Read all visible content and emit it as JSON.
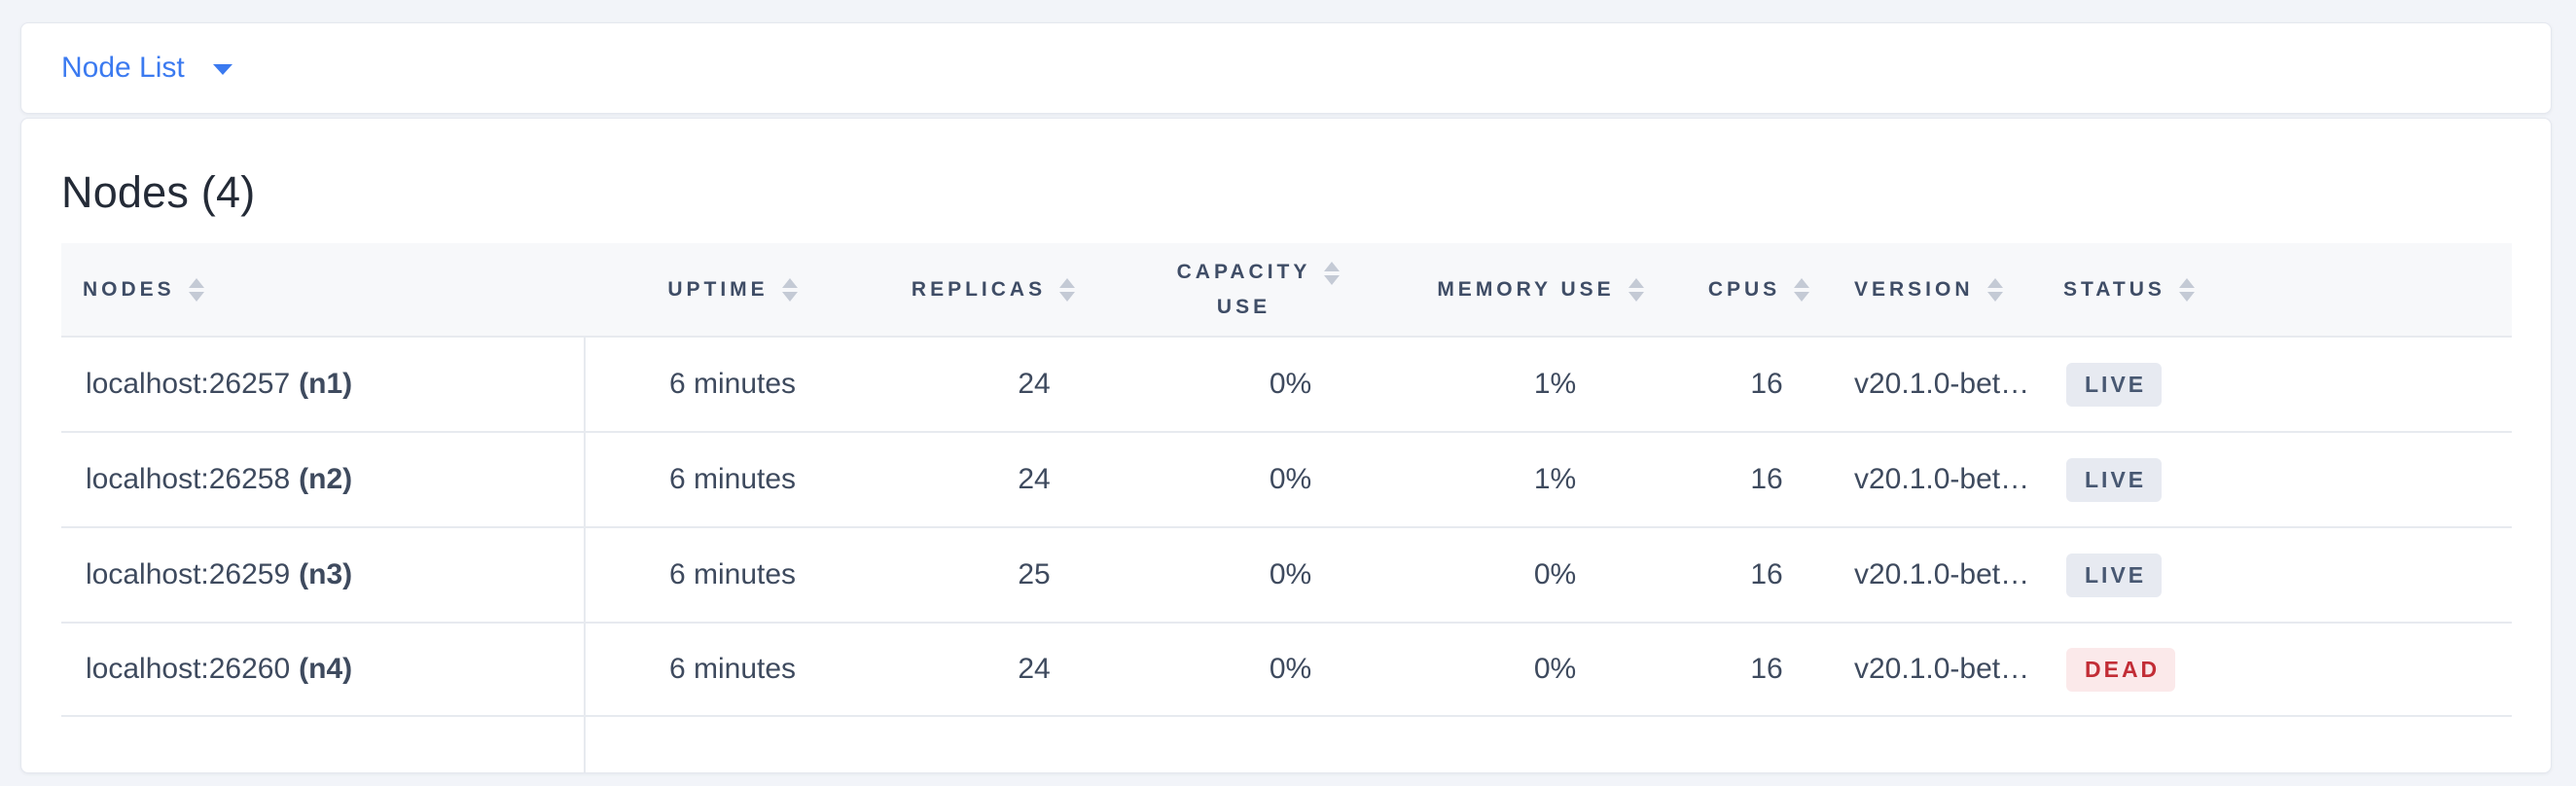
{
  "header_bar": {
    "dropdown_label": "Node List"
  },
  "panel": {
    "title": "Nodes (4)",
    "columns": [
      {
        "label": "NODES"
      },
      {
        "label": "UPTIME"
      },
      {
        "label": "REPLICAS"
      },
      {
        "label": "CAPACITY USE",
        "line1": "CAPACITY",
        "line2": "USE"
      },
      {
        "label": "MEMORY USE"
      },
      {
        "label": "CPUS"
      },
      {
        "label": "VERSION"
      },
      {
        "label": "STATUS"
      }
    ],
    "rows": [
      {
        "address": "localhost:26257",
        "node_id": "(n1)",
        "uptime": "6 minutes",
        "replicas": "24",
        "capacity_use": "0%",
        "memory_use": "1%",
        "cpus": "16",
        "version": "v20.1.0-bet…",
        "status": {
          "label": "LIVE",
          "type": "live"
        }
      },
      {
        "address": "localhost:26258",
        "node_id": "(n2)",
        "uptime": "6 minutes",
        "replicas": "24",
        "capacity_use": "0%",
        "memory_use": "1%",
        "cpus": "16",
        "version": "v20.1.0-bet…",
        "status": {
          "label": "LIVE",
          "type": "live"
        }
      },
      {
        "address": "localhost:26259",
        "node_id": "(n3)",
        "uptime": "6 minutes",
        "replicas": "25",
        "capacity_use": "0%",
        "memory_use": "0%",
        "cpus": "16",
        "version": "v20.1.0-bet…",
        "status": {
          "label": "LIVE",
          "type": "live"
        }
      },
      {
        "address": "localhost:26260",
        "node_id": "(n4)",
        "uptime": "6 minutes",
        "replicas": "24",
        "capacity_use": "0%",
        "memory_use": "0%",
        "cpus": "16",
        "version": "v20.1.0-bet…",
        "status": {
          "label": "DEAD",
          "type": "dead"
        }
      }
    ]
  },
  "colors": {
    "accent_blue": "#3b7af0",
    "live_badge_bg": "#e7eaf1",
    "live_badge_text": "#485872",
    "dead_badge_bg": "#fbe9ea",
    "dead_badge_text": "#c22d36",
    "page_background": "#f2f4f9"
  }
}
